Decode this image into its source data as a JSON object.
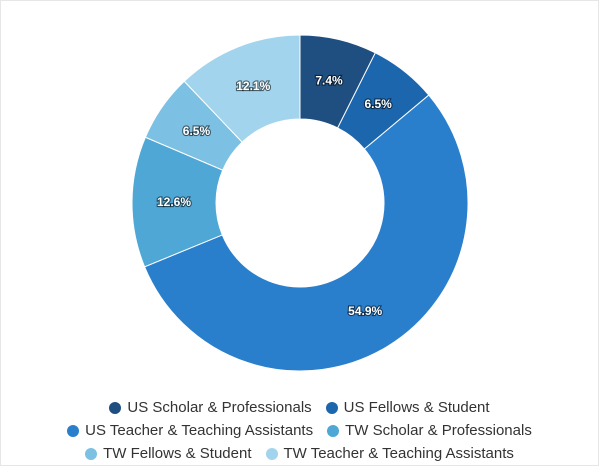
{
  "chart_data": {
    "type": "pie",
    "donut": true,
    "title": "",
    "legend_position": "bottom",
    "series": [
      {
        "name": "US Scholar & Professionals",
        "value": 7.4,
        "label": "7.4%",
        "color": "#1f4e80"
      },
      {
        "name": "US Fellows & Student",
        "value": 6.5,
        "label": "6.5%",
        "color": "#1b66ad"
      },
      {
        "name": "US Teacher & Teaching Assistants",
        "value": 54.9,
        "label": "54.9%",
        "color": "#2a7fcc"
      },
      {
        "name": "TW Scholar & Professionals",
        "value": 12.6,
        "label": "12.6%",
        "color": "#4fa7d6"
      },
      {
        "name": "TW Fellows & Student",
        "value": 6.5,
        "label": "6.5%",
        "color": "#7cc0e4"
      },
      {
        "name": "TW Teacher & Teaching Assistants",
        "value": 12.1,
        "label": "12.1%",
        "color": "#a3d4ee"
      }
    ]
  }
}
